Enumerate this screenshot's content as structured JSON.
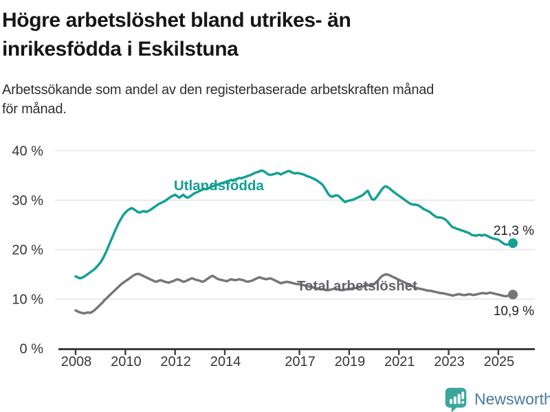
{
  "header": {
    "title_lines": [
      "Högre arbetslöshet bland utrikes- än",
      "inrikesfödda i Eskilstuna"
    ],
    "subtitle_lines": [
      "Arbetssökande som andel av den registerbaserade arbetskraften månad",
      "för månad."
    ]
  },
  "footer": {
    "brand": "Newsworthy",
    "brand_color": "#4a7a9c",
    "logo_color": "#3aa79e",
    "logo_icon": "bar-chart-speech-bubble"
  },
  "chart_data": {
    "type": "line",
    "x_start": "2008-01",
    "x_end": "2025-08",
    "x_step": "month",
    "ylim": [
      0,
      40
    ],
    "grid": true,
    "legend": "inline-labels",
    "colors": {
      "axis": "#3c3c3c",
      "grid": "#e3e3e3",
      "tick_text": "#363636",
      "end_label_text": "#1f1f1f"
    },
    "y_ticks": [
      {
        "label": "0 %",
        "value": 0
      },
      {
        "label": "10 %",
        "value": 10
      },
      {
        "label": "20 %",
        "value": 20
      },
      {
        "label": "30 %",
        "value": 30
      },
      {
        "label": "40 %",
        "value": 40
      }
    ],
    "x_ticks": [
      {
        "label": "2008",
        "year": 2008
      },
      {
        "label": "2010",
        "year": 2010
      },
      {
        "label": "2012",
        "year": 2012
      },
      {
        "label": "2014",
        "year": 2014
      },
      {
        "label": "2017",
        "year": 2017
      },
      {
        "label": "2019",
        "year": 2019
      },
      {
        "label": "2021",
        "year": 2021
      },
      {
        "label": "2023",
        "year": 2023
      },
      {
        "label": "2025",
        "year": 2025
      }
    ],
    "series": [
      {
        "name": "Utlandsfödda",
        "color": "#13a095",
        "label_color": "#13a095",
        "end_label": "21,3 %",
        "end_value": 21.3,
        "label_anchor": {
          "year": 2011.95,
          "value": 32.0
        },
        "values": [
          14.6,
          14.4,
          14.2,
          14.3,
          14.5,
          14.8,
          15.1,
          15.4,
          15.7,
          16.0,
          16.4,
          16.9,
          17.4,
          18.1,
          18.9,
          19.8,
          20.8,
          21.8,
          22.8,
          23.8,
          24.7,
          25.6,
          26.3,
          27.0,
          27.5,
          27.9,
          28.2,
          28.4,
          28.2,
          27.9,
          27.6,
          27.5,
          27.7,
          27.8,
          27.6,
          27.8,
          28.0,
          28.3,
          28.6,
          28.9,
          29.2,
          29.4,
          29.6,
          29.8,
          30.1,
          30.4,
          30.7,
          30.9,
          31.1,
          30.8,
          30.5,
          30.8,
          31.1,
          30.7,
          30.5,
          30.7,
          31.0,
          31.3,
          31.5,
          31.7,
          31.9,
          32.1,
          32.3,
          32.2,
          32.4,
          32.6,
          32.8,
          32.9,
          33.1,
          33.2,
          33.4,
          33.5,
          33.6,
          33.8,
          33.9,
          34.1,
          34.0,
          34.2,
          34.3,
          34.5,
          34.4,
          34.6,
          34.7,
          34.9,
          35.0,
          35.2,
          35.4,
          35.6,
          35.7,
          35.9,
          36.0,
          35.8,
          35.5,
          35.2,
          35.1,
          35.2,
          35.3,
          35.5,
          35.4,
          35.2,
          35.4,
          35.6,
          35.8,
          35.9,
          35.7,
          35.5,
          35.4,
          35.5,
          35.4,
          35.3,
          35.2,
          35.0,
          34.8,
          34.7,
          34.5,
          34.3,
          34.1,
          33.8,
          33.5,
          33.2,
          32.6,
          31.9,
          31.2,
          30.8,
          30.7,
          30.9,
          31.0,
          30.8,
          30.4,
          30.0,
          29.6,
          29.8,
          29.9,
          30.0,
          30.1,
          30.3,
          30.5,
          30.7,
          30.9,
          31.2,
          31.6,
          31.9,
          31.0,
          30.2,
          30.1,
          30.5,
          31.1,
          31.7,
          32.3,
          32.7,
          32.8,
          32.5,
          32.2,
          31.8,
          31.5,
          31.2,
          30.9,
          30.6,
          30.3,
          30.0,
          29.7,
          29.4,
          29.2,
          29.1,
          29.1,
          29.0,
          28.8,
          28.5,
          28.2,
          28.0,
          27.8,
          27.6,
          27.2,
          26.9,
          26.6,
          26.5,
          26.5,
          26.4,
          26.2,
          25.9,
          25.4,
          24.9,
          24.5,
          24.4,
          24.2,
          24.1,
          23.9,
          23.8,
          23.6,
          23.5,
          23.3,
          23.0,
          22.9,
          22.8,
          22.9,
          23.0,
          22.8,
          23.0,
          22.9,
          22.7,
          22.5,
          22.3,
          22.2,
          22.1,
          22.0,
          21.7,
          21.4,
          21.1,
          21.0,
          21.1,
          21.3,
          21.3
        ]
      },
      {
        "name": "Total arbetslöshet",
        "color": "#75757a",
        "label_color": "#63636a",
        "end_label": "10,9 %",
        "end_value": 10.9,
        "label_anchor": {
          "year": 2016.9,
          "value": 11.75
        },
        "values": [
          7.7,
          7.5,
          7.3,
          7.2,
          7.1,
          7.2,
          7.3,
          7.2,
          7.4,
          7.7,
          8.1,
          8.5,
          8.9,
          9.3,
          9.8,
          10.2,
          10.6,
          11.0,
          11.4,
          11.8,
          12.2,
          12.6,
          13.0,
          13.3,
          13.6,
          13.9,
          14.2,
          14.5,
          14.8,
          15.0,
          15.1,
          15.0,
          14.8,
          14.6,
          14.4,
          14.2,
          14.0,
          13.8,
          13.6,
          13.5,
          13.7,
          13.8,
          13.7,
          13.5,
          13.4,
          13.3,
          13.5,
          13.6,
          13.8,
          14.0,
          13.9,
          13.7,
          13.5,
          13.6,
          13.8,
          14.0,
          14.2,
          14.1,
          13.9,
          13.8,
          13.7,
          13.5,
          13.6,
          13.9,
          14.2,
          14.5,
          14.7,
          14.5,
          14.2,
          14.0,
          13.9,
          13.8,
          13.7,
          13.6,
          13.8,
          14.0,
          13.9,
          13.8,
          13.9,
          14.0,
          13.9,
          13.8,
          13.6,
          13.5,
          13.6,
          13.7,
          13.9,
          14.1,
          14.3,
          14.4,
          14.2,
          14.1,
          14.0,
          14.1,
          14.2,
          14.0,
          13.8,
          13.6,
          13.4,
          13.2,
          13.3,
          13.4,
          13.5,
          13.4,
          13.3,
          13.2,
          13.1,
          13.0,
          13.0,
          12.9,
          12.8,
          12.7,
          12.6,
          12.5,
          12.4,
          12.3,
          12.2,
          12.1,
          12.0,
          12.0,
          11.9,
          11.8,
          11.8,
          11.9,
          12.0,
          12.1,
          12.0,
          11.9,
          11.8,
          11.8,
          11.9,
          12.0,
          12.0,
          12.1,
          12.2,
          12.2,
          12.3,
          12.4,
          12.5,
          12.6,
          12.7,
          12.8,
          12.7,
          12.8,
          13.0,
          13.4,
          13.8,
          14.3,
          14.7,
          14.9,
          15.0,
          14.9,
          14.7,
          14.5,
          14.3,
          14.1,
          13.9,
          13.7,
          13.5,
          13.3,
          13.1,
          12.9,
          12.7,
          12.5,
          12.3,
          12.2,
          12.1,
          12.0,
          11.9,
          11.8,
          11.7,
          11.7,
          11.6,
          11.5,
          11.4,
          11.3,
          11.2,
          11.2,
          11.1,
          11.0,
          10.9,
          10.8,
          10.7,
          10.8,
          10.9,
          11.0,
          10.9,
          10.8,
          10.8,
          10.9,
          11.0,
          10.9,
          10.8,
          10.9,
          11.0,
          11.1,
          11.2,
          11.2,
          11.1,
          11.2,
          11.3,
          11.2,
          11.1,
          11.0,
          10.9,
          10.8,
          10.7,
          10.6,
          10.6,
          10.7,
          10.8,
          10.9
        ]
      }
    ]
  }
}
